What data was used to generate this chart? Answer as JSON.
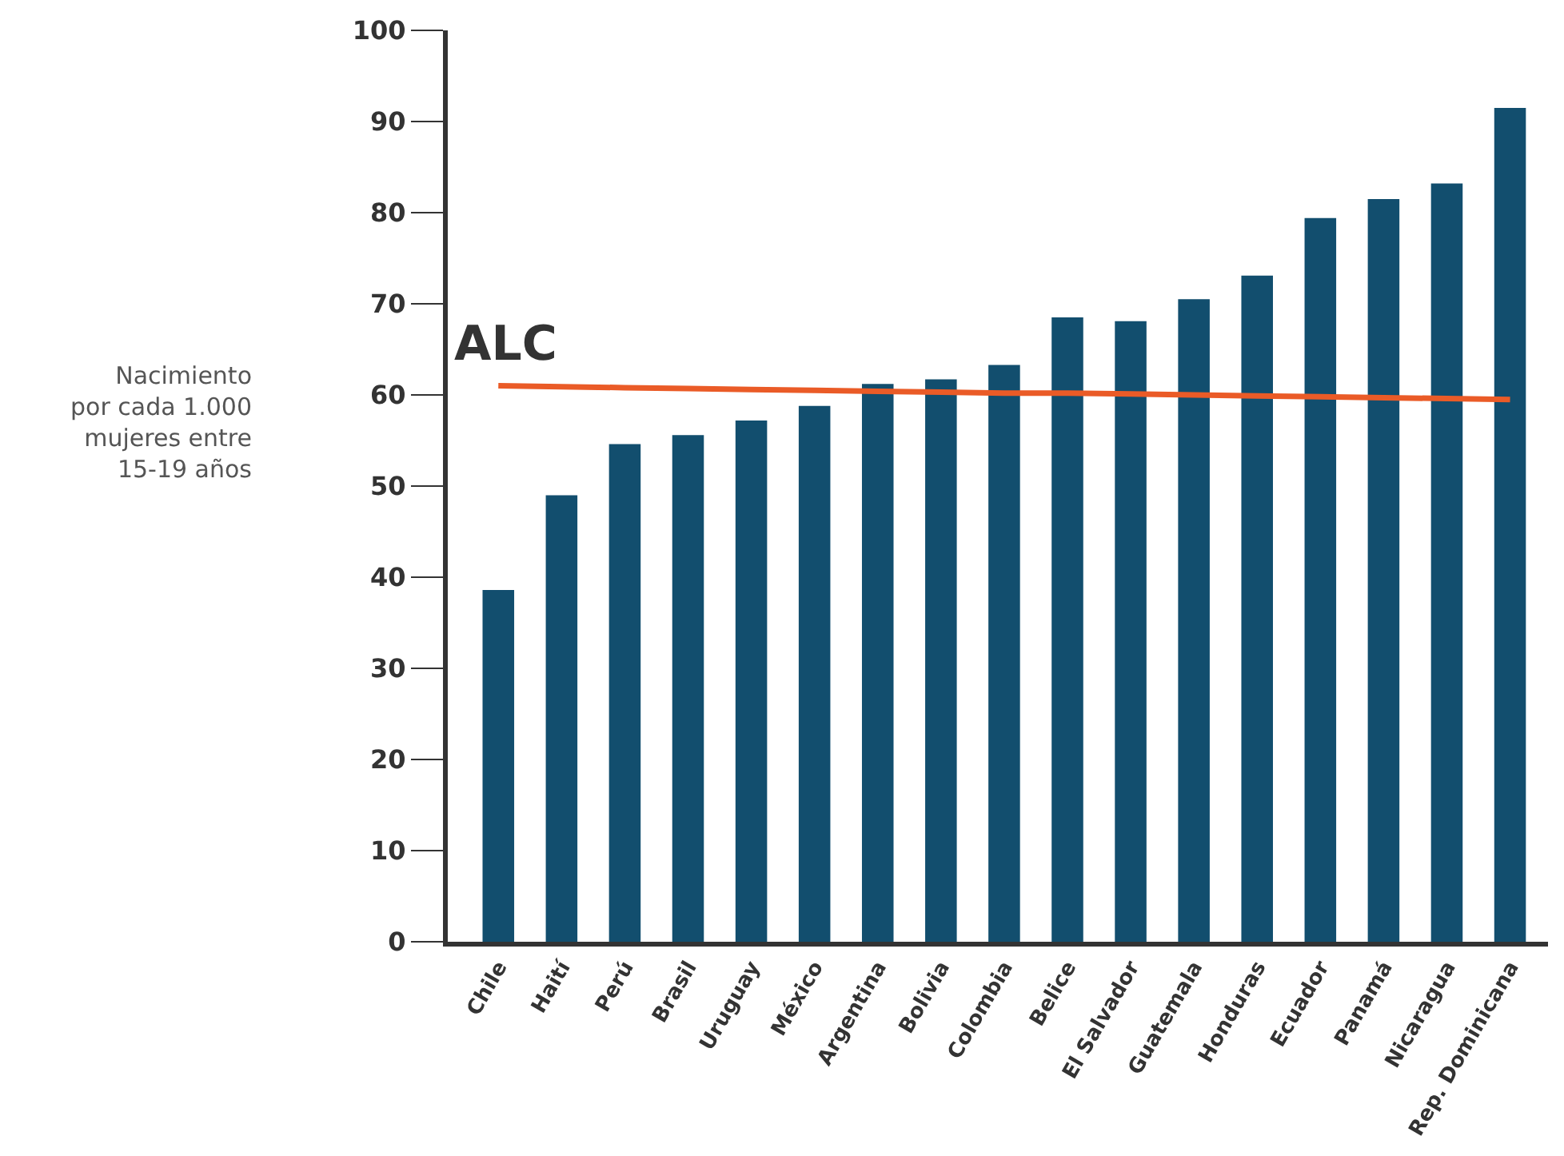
{
  "chart_data": {
    "type": "bar",
    "ylabel": "Nacimiento\npor cada 1.000\nmujeres entre\n15-19 años",
    "categories": [
      "Chile",
      "Haití",
      "Perú",
      "Brasil",
      "Uruguay",
      "México",
      "Argentina",
      "Bolivia",
      "Colombia",
      "Belice",
      "El Salvador",
      "Guatemala",
      "Honduras",
      "Ecuador",
      "Panamá",
      "Nicaragua",
      "Rep. Dominicana"
    ],
    "series": [
      {
        "color": "#124e6e",
        "values": [
          38.6,
          49.0,
          54.6,
          55.6,
          57.2,
          58.8,
          61.2,
          61.7,
          63.3,
          68.5,
          68.1,
          70.5,
          73.1,
          79.4,
          81.5,
          83.2,
          91.5
        ]
      },
      {
        "name": "ALC",
        "type": "line",
        "color": "#ea5b27",
        "values": [
          61.0,
          60.9,
          60.8,
          60.7,
          60.6,
          60.5,
          60.4,
          60.3,
          60.2,
          60.2,
          60.1,
          60.0,
          59.9,
          59.8,
          59.7,
          59.6,
          59.5
        ]
      }
    ],
    "ylim": [
      0,
      100
    ],
    "yticks": [
      0,
      10,
      20,
      30,
      40,
      50,
      60,
      70,
      80,
      90,
      100
    ],
    "legend": false
  }
}
